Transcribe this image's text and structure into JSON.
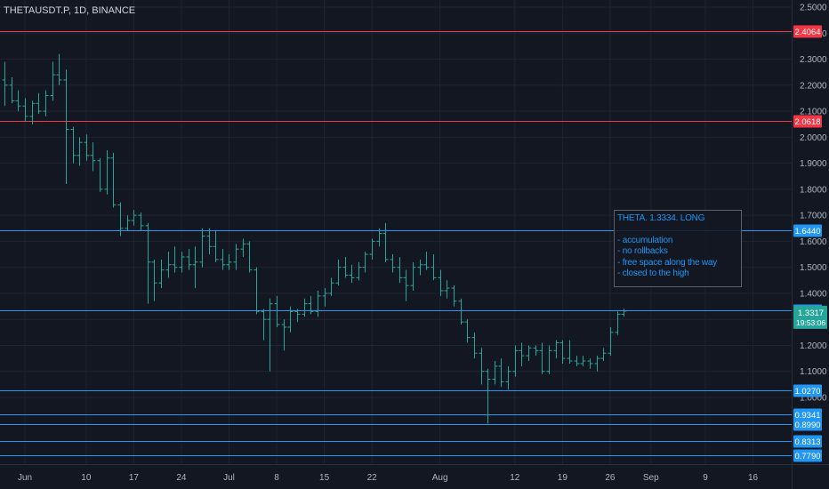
{
  "header": {
    "symbol": "THETAUSDT.P, 1D, BINANCE"
  },
  "note": {
    "title": "THETA. 1.3334. LONG",
    "lines": [
      "- accumulation",
      "- no rollbacks",
      "- free space along the way",
      "- closed to the high"
    ]
  },
  "colors": {
    "background": "#131722",
    "grid": "#1f2330",
    "candle": "#26a69a",
    "blue_level": "#2196f3",
    "red_level": "#f23645",
    "price_tag_current": "#26a69a"
  },
  "chart_data": {
    "type": "ohlc",
    "title": "THETAUSDT.P, 1D, BINANCE",
    "ylim": [
      0.76,
      2.52
    ],
    "y_ticks": [
      "2.5000",
      "2.4000",
      "2.3000",
      "2.2000",
      "2.1000",
      "2.0000",
      "1.9000",
      "1.8000",
      "1.7000",
      "1.6000",
      "1.5000",
      "1.4000",
      "1.3000",
      "1.2000",
      "1.1000",
      "1.0000"
    ],
    "x_ticks": [
      "Jun",
      "10",
      "17",
      "24",
      "Jul",
      "8",
      "15",
      "22",
      "Aug",
      "12",
      "19",
      "26",
      "Sep",
      "9",
      "16"
    ],
    "horizontal_levels": [
      {
        "value": 2.4064,
        "label": "2.4064",
        "color": "red"
      },
      {
        "value": 2.0618,
        "label": "2.0618",
        "color": "red"
      },
      {
        "value": 1.644,
        "label": "1.6440",
        "color": "blue"
      },
      {
        "value": 1.3334,
        "label": "1.3334",
        "color": "blue"
      },
      {
        "value": 1.027,
        "label": "1.0270",
        "color": "blue"
      },
      {
        "value": 0.9341,
        "label": "0.9341",
        "color": "blue"
      },
      {
        "value": 0.899,
        "label": "0.8990",
        "color": "blue"
      },
      {
        "value": 0.8313,
        "label": "0.8313",
        "color": "blue"
      },
      {
        "value": 0.779,
        "label": "0.7790",
        "color": "blue"
      }
    ],
    "current_price": {
      "value": 1.3317,
      "label": "1.3317",
      "countdown": "19:53:06"
    },
    "candles": [
      {
        "o": 2.22,
        "h": 2.29,
        "l": 2.12,
        "c": 2.2
      },
      {
        "o": 2.2,
        "h": 2.23,
        "l": 2.13,
        "c": 2.14
      },
      {
        "o": 2.14,
        "h": 2.18,
        "l": 2.1,
        "c": 2.12
      },
      {
        "o": 2.12,
        "h": 2.15,
        "l": 2.06,
        "c": 2.08
      },
      {
        "o": 2.08,
        "h": 2.14,
        "l": 2.05,
        "c": 2.13
      },
      {
        "o": 2.13,
        "h": 2.17,
        "l": 2.09,
        "c": 2.1
      },
      {
        "o": 2.1,
        "h": 2.18,
        "l": 2.08,
        "c": 2.16
      },
      {
        "o": 2.16,
        "h": 2.29,
        "l": 2.14,
        "c": 2.24
      },
      {
        "o": 2.24,
        "h": 2.32,
        "l": 2.2,
        "c": 2.22
      },
      {
        "o": 2.22,
        "h": 2.26,
        "l": 1.82,
        "c": 2.03
      },
      {
        "o": 2.03,
        "h": 2.04,
        "l": 1.9,
        "c": 1.93
      },
      {
        "o": 1.93,
        "h": 2.0,
        "l": 1.89,
        "c": 1.98
      },
      {
        "o": 1.98,
        "h": 2.01,
        "l": 1.91,
        "c": 1.93
      },
      {
        "o": 1.93,
        "h": 1.98,
        "l": 1.87,
        "c": 1.91
      },
      {
        "o": 1.91,
        "h": 1.92,
        "l": 1.79,
        "c": 1.8
      },
      {
        "o": 1.8,
        "h": 1.95,
        "l": 1.78,
        "c": 1.92
      },
      {
        "o": 1.92,
        "h": 1.94,
        "l": 1.73,
        "c": 1.74
      },
      {
        "o": 1.74,
        "h": 1.75,
        "l": 1.62,
        "c": 1.65
      },
      {
        "o": 1.65,
        "h": 1.7,
        "l": 1.64,
        "c": 1.68
      },
      {
        "o": 1.68,
        "h": 1.72,
        "l": 1.66,
        "c": 1.7
      },
      {
        "o": 1.7,
        "h": 1.71,
        "l": 1.64,
        "c": 1.66
      },
      {
        "o": 1.66,
        "h": 1.67,
        "l": 1.36,
        "c": 1.52
      },
      {
        "o": 1.52,
        "h": 1.53,
        "l": 1.37,
        "c": 1.44
      },
      {
        "o": 1.44,
        "h": 1.53,
        "l": 1.42,
        "c": 1.49
      },
      {
        "o": 1.49,
        "h": 1.56,
        "l": 1.46,
        "c": 1.51
      },
      {
        "o": 1.51,
        "h": 1.58,
        "l": 1.48,
        "c": 1.5
      },
      {
        "o": 1.5,
        "h": 1.56,
        "l": 1.48,
        "c": 1.54
      },
      {
        "o": 1.54,
        "h": 1.57,
        "l": 1.49,
        "c": 1.51
      },
      {
        "o": 1.51,
        "h": 1.58,
        "l": 1.42,
        "c": 1.52
      },
      {
        "o": 1.52,
        "h": 1.65,
        "l": 1.5,
        "c": 1.62
      },
      {
        "o": 1.62,
        "h": 1.65,
        "l": 1.55,
        "c": 1.58
      },
      {
        "o": 1.58,
        "h": 1.64,
        "l": 1.52,
        "c": 1.53
      },
      {
        "o": 1.53,
        "h": 1.57,
        "l": 1.49,
        "c": 1.51
      },
      {
        "o": 1.51,
        "h": 1.55,
        "l": 1.49,
        "c": 1.52
      },
      {
        "o": 1.52,
        "h": 1.59,
        "l": 1.49,
        "c": 1.57
      },
      {
        "o": 1.57,
        "h": 1.61,
        "l": 1.54,
        "c": 1.59
      },
      {
        "o": 1.59,
        "h": 1.6,
        "l": 1.48,
        "c": 1.49
      },
      {
        "o": 1.49,
        "h": 1.5,
        "l": 1.32,
        "c": 1.33
      },
      {
        "o": 1.33,
        "h": 1.34,
        "l": 1.22,
        "c": 1.3
      },
      {
        "o": 1.3,
        "h": 1.38,
        "l": 1.1,
        "c": 1.36
      },
      {
        "o": 1.36,
        "h": 1.39,
        "l": 1.27,
        "c": 1.28
      },
      {
        "o": 1.28,
        "h": 1.3,
        "l": 1.18,
        "c": 1.27
      },
      {
        "o": 1.27,
        "h": 1.35,
        "l": 1.25,
        "c": 1.33
      },
      {
        "o": 1.33,
        "h": 1.34,
        "l": 1.29,
        "c": 1.32
      },
      {
        "o": 1.32,
        "h": 1.38,
        "l": 1.31,
        "c": 1.36
      },
      {
        "o": 1.36,
        "h": 1.39,
        "l": 1.32,
        "c": 1.33
      },
      {
        "o": 1.33,
        "h": 1.41,
        "l": 1.31,
        "c": 1.39
      },
      {
        "o": 1.39,
        "h": 1.42,
        "l": 1.35,
        "c": 1.4
      },
      {
        "o": 1.4,
        "h": 1.46,
        "l": 1.39,
        "c": 1.44
      },
      {
        "o": 1.44,
        "h": 1.53,
        "l": 1.43,
        "c": 1.5
      },
      {
        "o": 1.5,
        "h": 1.54,
        "l": 1.46,
        "c": 1.47
      },
      {
        "o": 1.47,
        "h": 1.51,
        "l": 1.44,
        "c": 1.46
      },
      {
        "o": 1.46,
        "h": 1.52,
        "l": 1.45,
        "c": 1.5
      },
      {
        "o": 1.5,
        "h": 1.56,
        "l": 1.48,
        "c": 1.55
      },
      {
        "o": 1.55,
        "h": 1.61,
        "l": 1.53,
        "c": 1.6
      },
      {
        "o": 1.6,
        "h": 1.65,
        "l": 1.58,
        "c": 1.63
      },
      {
        "o": 1.63,
        "h": 1.67,
        "l": 1.52,
        "c": 1.53
      },
      {
        "o": 1.53,
        "h": 1.55,
        "l": 1.48,
        "c": 1.5
      },
      {
        "o": 1.5,
        "h": 1.54,
        "l": 1.44,
        "c": 1.46
      },
      {
        "o": 1.46,
        "h": 1.49,
        "l": 1.37,
        "c": 1.43
      },
      {
        "o": 1.43,
        "h": 1.52,
        "l": 1.41,
        "c": 1.5
      },
      {
        "o": 1.5,
        "h": 1.53,
        "l": 1.47,
        "c": 1.51
      },
      {
        "o": 1.51,
        "h": 1.56,
        "l": 1.49,
        "c": 1.5
      },
      {
        "o": 1.5,
        "h": 1.55,
        "l": 1.45,
        "c": 1.46
      },
      {
        "o": 1.46,
        "h": 1.49,
        "l": 1.39,
        "c": 1.41
      },
      {
        "o": 1.41,
        "h": 1.45,
        "l": 1.38,
        "c": 1.42
      },
      {
        "o": 1.42,
        "h": 1.43,
        "l": 1.35,
        "c": 1.37
      },
      {
        "o": 1.37,
        "h": 1.38,
        "l": 1.28,
        "c": 1.29
      },
      {
        "o": 1.29,
        "h": 1.3,
        "l": 1.21,
        "c": 1.23
      },
      {
        "o": 1.23,
        "h": 1.25,
        "l": 1.15,
        "c": 1.17
      },
      {
        "o": 1.17,
        "h": 1.19,
        "l": 1.05,
        "c": 1.1
      },
      {
        "o": 1.1,
        "h": 1.11,
        "l": 0.9,
        "c": 1.07
      },
      {
        "o": 1.07,
        "h": 1.14,
        "l": 1.05,
        "c": 1.12
      },
      {
        "o": 1.12,
        "h": 1.15,
        "l": 1.04,
        "c": 1.06
      },
      {
        "o": 1.06,
        "h": 1.12,
        "l": 1.03,
        "c": 1.1
      },
      {
        "o": 1.1,
        "h": 1.2,
        "l": 1.08,
        "c": 1.18
      },
      {
        "o": 1.18,
        "h": 1.21,
        "l": 1.12,
        "c": 1.16
      },
      {
        "o": 1.16,
        "h": 1.2,
        "l": 1.14,
        "c": 1.19
      },
      {
        "o": 1.19,
        "h": 1.2,
        "l": 1.16,
        "c": 1.18
      },
      {
        "o": 1.18,
        "h": 1.21,
        "l": 1.09,
        "c": 1.1
      },
      {
        "o": 1.1,
        "h": 1.2,
        "l": 1.09,
        "c": 1.18
      },
      {
        "o": 1.18,
        "h": 1.22,
        "l": 1.15,
        "c": 1.21
      },
      {
        "o": 1.21,
        "h": 1.22,
        "l": 1.13,
        "c": 1.15
      },
      {
        "o": 1.15,
        "h": 1.22,
        "l": 1.13,
        "c": 1.14
      },
      {
        "o": 1.14,
        "h": 1.16,
        "l": 1.12,
        "c": 1.13
      },
      {
        "o": 1.13,
        "h": 1.16,
        "l": 1.12,
        "c": 1.14
      },
      {
        "o": 1.14,
        "h": 1.15,
        "l": 1.11,
        "c": 1.13
      },
      {
        "o": 1.13,
        "h": 1.16,
        "l": 1.1,
        "c": 1.15
      },
      {
        "o": 1.15,
        "h": 1.19,
        "l": 1.14,
        "c": 1.17
      },
      {
        "o": 1.17,
        "h": 1.27,
        "l": 1.16,
        "c": 1.25
      },
      {
        "o": 1.25,
        "h": 1.33,
        "l": 1.24,
        "c": 1.32
      },
      {
        "o": 1.32,
        "h": 1.34,
        "l": 1.31,
        "c": 1.3317
      }
    ]
  }
}
